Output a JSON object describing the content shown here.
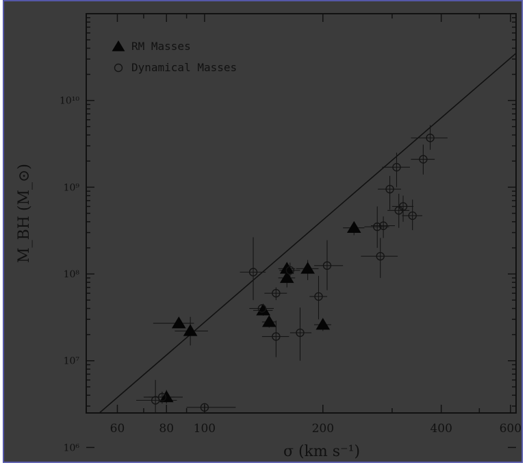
{
  "chart_data": {
    "type": "scatter",
    "title": "",
    "xlabel": "σ (km s⁻¹)",
    "ylabel": "M_BH (M_⊙)",
    "x_scale": "log",
    "y_scale": "log",
    "xlim": [
      50,
      620
    ],
    "ylim": [
      2500000,
      100000000000
    ],
    "x_ticks": [
      60,
      80,
      100,
      200,
      400,
      600
    ],
    "x_tick_labels": [
      "60",
      "80",
      "100",
      "200",
      "400",
      "600"
    ],
    "y_ticks": [
      1000000,
      10000000,
      100000000,
      1000000000,
      10000000000
    ],
    "y_tick_labels": [
      "10⁶",
      "10⁷",
      "10⁸",
      "10⁹",
      "10¹⁰"
    ],
    "legend_position": "top-left",
    "legend": [
      {
        "label": "RM Masses",
        "marker": "filled-triangle"
      },
      {
        "label": "Dynamical Masses",
        "marker": "open-circle"
      }
    ],
    "fit_line": {
      "x": [
        54,
        620
      ],
      "y": [
        2500000,
        35000000000
      ]
    },
    "series": [
      {
        "name": "RM Masses",
        "marker": "filled-triangle",
        "points": [
          {
            "x": 80,
            "y": 3800000,
            "xerr": [
              8,
              8
            ],
            "yerr": [
              600000,
              800000
            ]
          },
          {
            "x": 86,
            "y": 27000000,
            "xerr": [
              12,
              8
            ],
            "yerr": [
              3000000,
              3000000
            ]
          },
          {
            "x": 92,
            "y": 22000000,
            "xerr": [
              8,
              10
            ],
            "yerr": [
              7000000,
              10000000
            ]
          },
          {
            "x": 141,
            "y": 38000000,
            "xerr": [
              8,
              8
            ],
            "yerr": [
              5000000,
              5000000
            ]
          },
          {
            "x": 146,
            "y": 28000000,
            "xerr": [
              6,
              6
            ],
            "yerr": [
              4000000,
              4000000
            ]
          },
          {
            "x": 162,
            "y": 115000000,
            "xerr": [
              8,
              8
            ],
            "yerr": [
              20000000,
              20000000
            ]
          },
          {
            "x": 162,
            "y": 90000000,
            "xerr": [
              8,
              8
            ],
            "yerr": [
              20000000,
              20000000
            ]
          },
          {
            "x": 183,
            "y": 115000000,
            "xerr": [
              12,
              12
            ],
            "yerr": [
              30000000,
              30000000
            ]
          },
          {
            "x": 200,
            "y": 26000000,
            "xerr": [
              10,
              10
            ],
            "yerr": [
              4000000,
              4000000
            ]
          },
          {
            "x": 240,
            "y": 340000000,
            "xerr": [
              15,
              15
            ],
            "yerr": [
              60000000,
              60000000
            ]
          }
        ]
      },
      {
        "name": "Dynamical Masses",
        "marker": "open-circle",
        "points": [
          {
            "x": 75,
            "y": 3500000,
            "xerr": [
              8,
              10
            ],
            "yerr": [
              1800000,
              2500000
            ]
          },
          {
            "x": 78,
            "y": 3800000,
            "xerr": [
              8,
              6
            ],
            "yerr": [
              600000,
              600000
            ]
          },
          {
            "x": 100,
            "y": 2900000,
            "xerr": [
              10,
              20
            ],
            "yerr": [
              300000,
              300000
            ]
          },
          {
            "x": 133,
            "y": 105000000,
            "xerr": [
              10,
              10
            ],
            "yerr": [
              55000000,
              160000000
            ]
          },
          {
            "x": 140,
            "y": 40000000,
            "xerr": [
              10,
              10
            ],
            "yerr": [
              5000000,
              5000000
            ]
          },
          {
            "x": 152,
            "y": 19000000,
            "xerr": [
              12,
              12
            ],
            "yerr": [
              8000000,
              10000000
            ]
          },
          {
            "x": 152,
            "y": 60000000,
            "xerr": [
              10,
              10
            ],
            "yerr": [
              10000000,
              10000000
            ]
          },
          {
            "x": 165,
            "y": 110000000,
            "xerr": [
              10,
              10
            ],
            "yerr": [
              25000000,
              25000000
            ]
          },
          {
            "x": 175,
            "y": 21000000,
            "xerr": [
              10,
              12
            ],
            "yerr": [
              11000000,
              20000000
            ]
          },
          {
            "x": 195,
            "y": 55000000,
            "xerr": [
              10,
              10
            ],
            "yerr": [
              25000000,
              40000000
            ]
          },
          {
            "x": 205,
            "y": 125000000,
            "xerr": [
              15,
              20
            ],
            "yerr": [
              60000000,
              120000000
            ]
          },
          {
            "x": 275,
            "y": 350000000,
            "xerr": [
              20,
              20
            ],
            "yerr": [
              150000000,
              250000000
            ]
          },
          {
            "x": 280,
            "y": 160000000,
            "xerr": [
              30,
              30
            ],
            "yerr": [
              70000000,
              100000000
            ]
          },
          {
            "x": 285,
            "y": 360000000,
            "xerr": [
              20,
              20
            ],
            "yerr": [
              100000000,
              100000000
            ]
          },
          {
            "x": 296,
            "y": 950000000,
            "xerr": [
              20,
              20
            ],
            "yerr": [
              400000000,
              400000000
            ]
          },
          {
            "x": 308,
            "y": 1700000000,
            "xerr": [
              25,
              25
            ],
            "yerr": [
              700000000,
              800000000
            ]
          },
          {
            "x": 312,
            "y": 540000000,
            "xerr": [
              20,
              20
            ],
            "yerr": [
              200000000,
              300000000
            ]
          },
          {
            "x": 320,
            "y": 600000000,
            "xerr": [
              20,
              20
            ],
            "yerr": [
              200000000,
              200000000
            ]
          },
          {
            "x": 338,
            "y": 470000000,
            "xerr": [
              20,
              20
            ],
            "yerr": [
              150000000,
              250000000
            ]
          },
          {
            "x": 360,
            "y": 2100000000,
            "xerr": [
              25,
              25
            ],
            "yerr": [
              700000000,
              1000000000
            ]
          },
          {
            "x": 375,
            "y": 3700000000,
            "xerr": [
              40,
              40
            ],
            "yerr": [
              1000000000,
              1500000000
            ]
          }
        ]
      }
    ]
  }
}
